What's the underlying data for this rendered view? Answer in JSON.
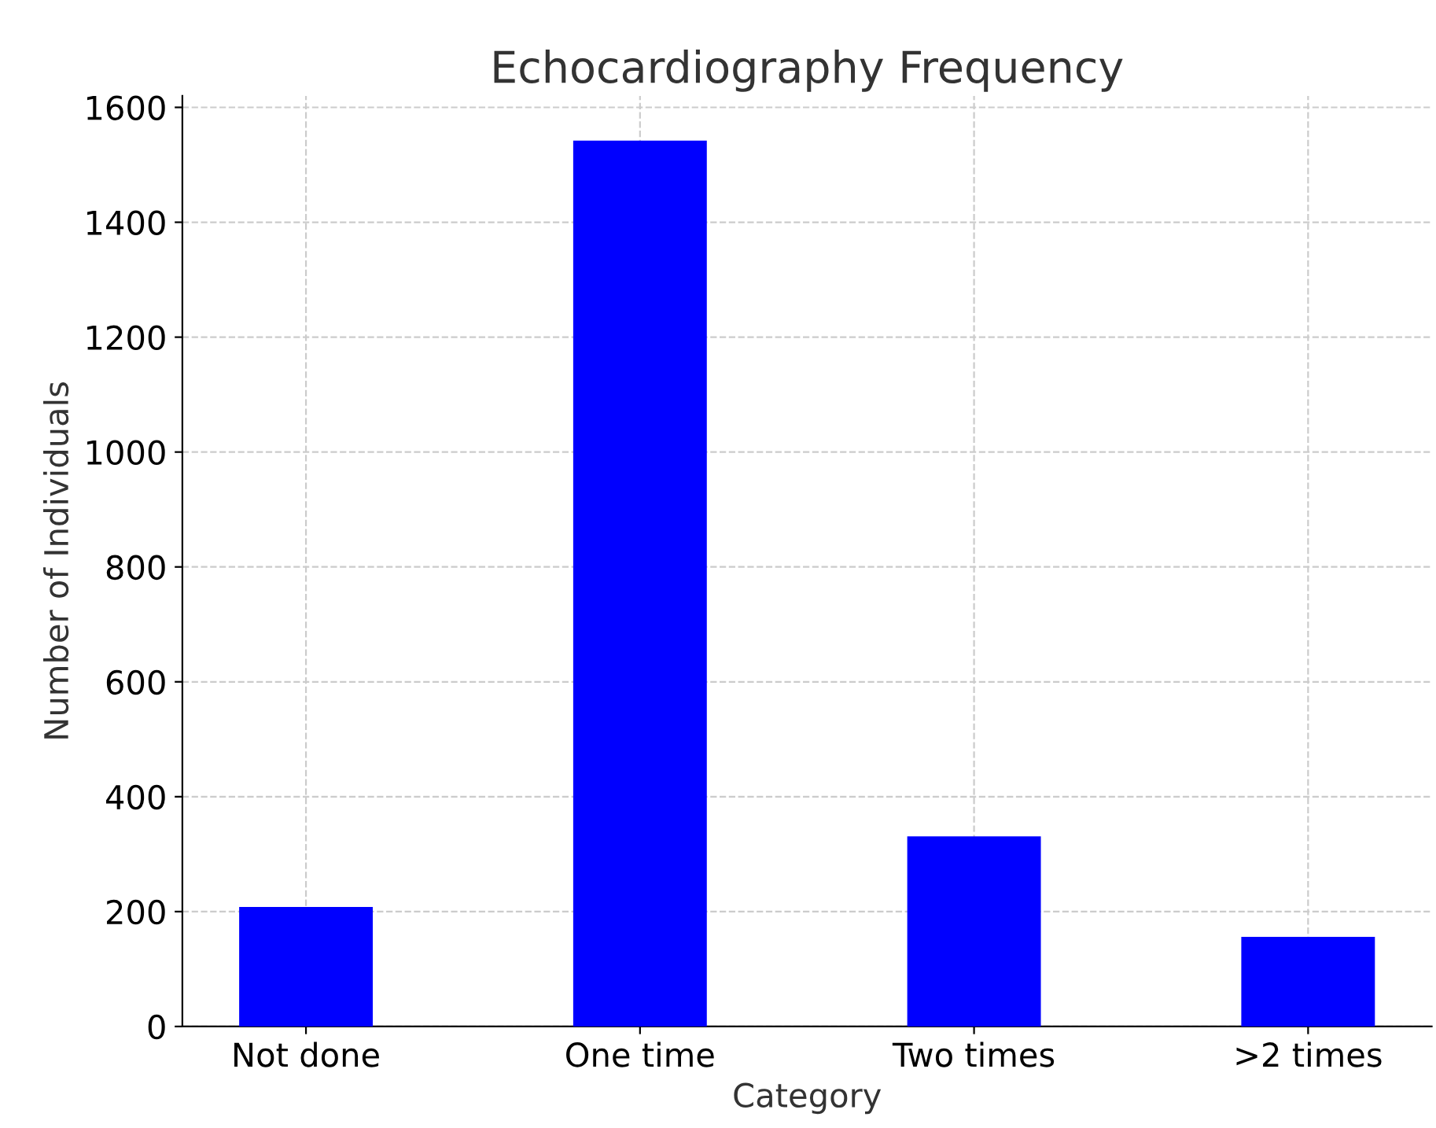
{
  "chart_data": {
    "type": "bar",
    "title": "Echocardiography Frequency",
    "xlabel": "Category",
    "ylabel": "Number of Individuals",
    "categories": [
      "Not done",
      "One time",
      "Two times",
      ">2 times"
    ],
    "values": [
      208,
      1542,
      331,
      156
    ],
    "color": "#0000ff",
    "ylim": [
      0,
      1620
    ],
    "yticks": [
      0,
      200,
      400,
      600,
      800,
      1000,
      1200,
      1400,
      1600
    ],
    "grid": true
  }
}
